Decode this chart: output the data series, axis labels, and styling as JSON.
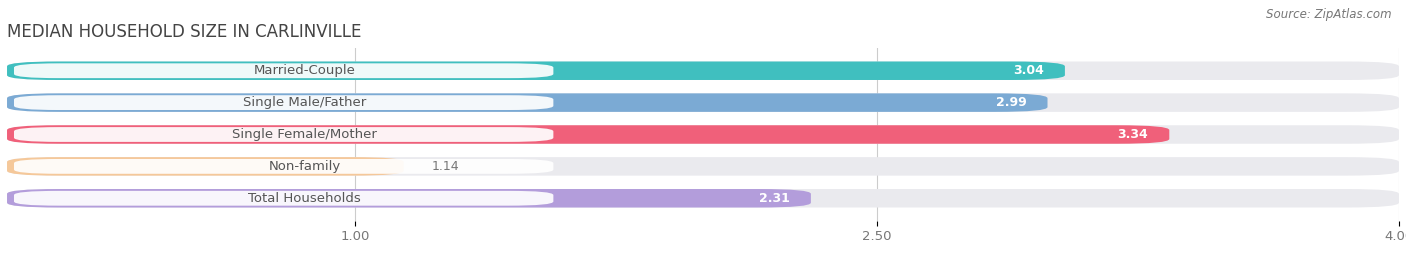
{
  "title": "MEDIAN HOUSEHOLD SIZE IN CARLINVILLE",
  "source": "Source: ZipAtlas.com",
  "categories": [
    "Married-Couple",
    "Single Male/Father",
    "Single Female/Mother",
    "Non-family",
    "Total Households"
  ],
  "values": [
    3.04,
    2.99,
    3.34,
    1.14,
    2.31
  ],
  "bar_colors": [
    "#40bfbf",
    "#7baad4",
    "#f0607a",
    "#f5c89a",
    "#b39ddb"
  ],
  "bar_bg_color": "#eaeaee",
  "xlim": [
    0,
    4.0
  ],
  "xticks": [
    1.0,
    2.5,
    4.0
  ],
  "label_fontsize": 9.5,
  "value_fontsize": 9,
  "title_fontsize": 12,
  "source_fontsize": 8.5,
  "background_color": "#ffffff",
  "bar_height": 0.58,
  "text_color": "#555555",
  "value_color_inside": "#ffffff",
  "value_color_outside": "#777777",
  "label_box_color": "#ffffff",
  "label_text_color": "#555555"
}
